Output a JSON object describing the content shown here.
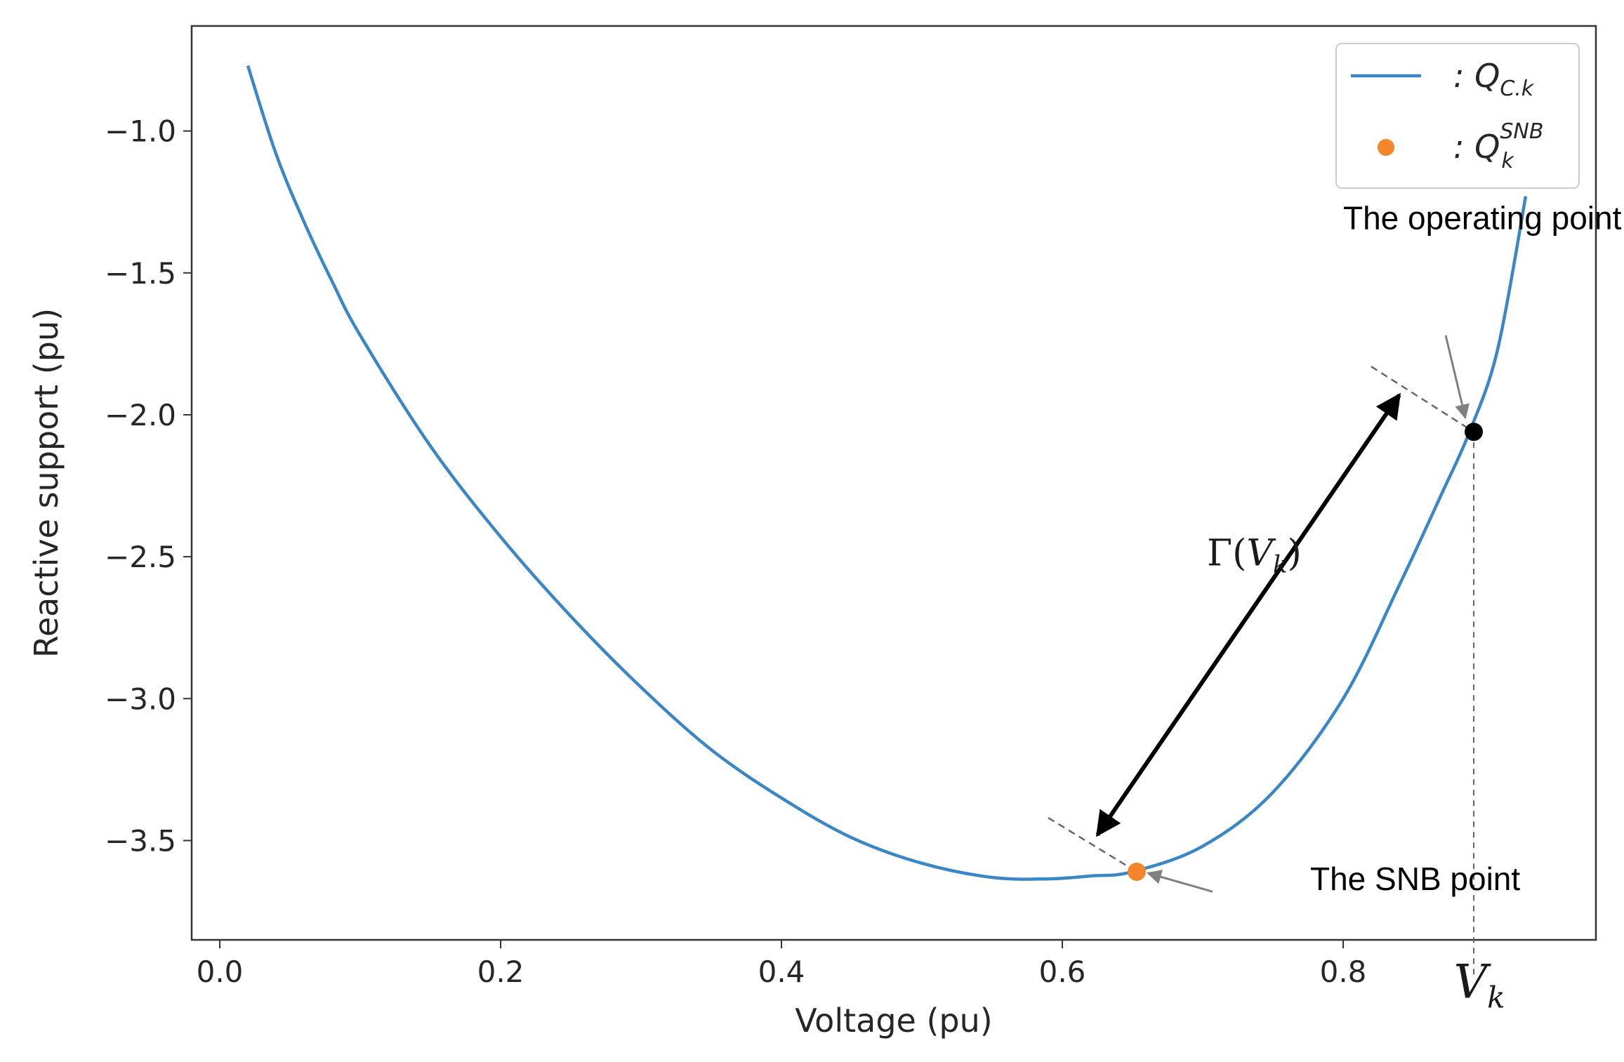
{
  "chart_data": {
    "type": "line",
    "xlabel": "Voltage (pu)",
    "ylabel": "Reactive support (pu)",
    "xlim": [
      -0.02,
      0.98
    ],
    "ylim": [
      -3.85,
      -0.63
    ],
    "xticks": [
      0.0,
      0.2,
      0.4,
      0.6,
      0.8
    ],
    "xtick_labels": [
      "0.0",
      "0.2",
      "0.4",
      "0.6",
      "0.8"
    ],
    "yticks": [
      -1.0,
      -1.5,
      -2.0,
      -2.5,
      -3.0,
      -3.5
    ],
    "ytick_labels": [
      "−1.0",
      "−1.5",
      "−2.0",
      "−2.5",
      "−3.0",
      "−3.5"
    ],
    "grid": false,
    "legend_position": "top-right",
    "series": [
      {
        "name": ": Q_C.k",
        "color": "#3b86c4",
        "x": [
          0.02,
          0.04,
          0.06,
          0.08,
          0.1,
          0.15,
          0.2,
          0.25,
          0.3,
          0.35,
          0.4,
          0.45,
          0.5,
          0.55,
          0.59,
          0.62,
          0.65,
          0.7,
          0.75,
          0.8,
          0.84,
          0.87,
          0.89,
          0.91,
          0.93
        ],
        "y": [
          -0.77,
          -1.08,
          -1.32,
          -1.53,
          -1.72,
          -2.11,
          -2.43,
          -2.71,
          -2.96,
          -3.18,
          -3.35,
          -3.49,
          -3.58,
          -3.63,
          -3.635,
          -3.625,
          -3.61,
          -3.52,
          -3.33,
          -3.0,
          -2.6,
          -2.28,
          -2.06,
          -1.77,
          -1.23
        ]
      }
    ],
    "points": [
      {
        "name": ": Q_k^SNB",
        "x": 0.653,
        "y": -3.61,
        "color": "#f5852a"
      },
      {
        "x": 0.893,
        "y": -2.06,
        "color": "#000000"
      }
    ],
    "legend": [
      {
        "label_main": ": Q",
        "label_sub": "C.k",
        "label_sup": "",
        "kind": "line",
        "color": "#3b86c4"
      },
      {
        "label_main": ": Q",
        "label_sub": "k",
        "label_sup": "SNB",
        "kind": "dot",
        "color": "#f5852a"
      }
    ],
    "annotations": {
      "operating_point": {
        "text": "The operating point",
        "text_x": 0.8,
        "text_y": -1.47,
        "target_x": 0.893,
        "target_y": -2.06
      },
      "snb_point": {
        "text": "The SNB point",
        "text_x": 0.78,
        "text_y": -3.64,
        "target_x": 0.653,
        "target_y": -3.61
      },
      "gamma": {
        "text_main": "Γ(",
        "text_var": "V",
        "text_sub": "k",
        "text_close": ")",
        "x": 0.703,
        "y": -2.53
      },
      "vk": {
        "text_var": "V",
        "text_sub": "k",
        "x": 0.893,
        "y": -3.98
      },
      "double_arrow": {
        "x1": 0.84,
        "y1": -1.93,
        "x2": 0.625,
        "y2": -3.48
      },
      "tangent_top": {
        "x1": 0.82,
        "y1": -1.83,
        "x2": 0.893,
        "y2": -2.06
      },
      "tangent_bottom": {
        "x1": 0.59,
        "y1": -3.42,
        "x2": 0.653,
        "y2": -3.61
      },
      "vertical_drop": {
        "x": 0.893,
        "y_top": -2.06,
        "y_bottom": -3.98
      }
    }
  }
}
